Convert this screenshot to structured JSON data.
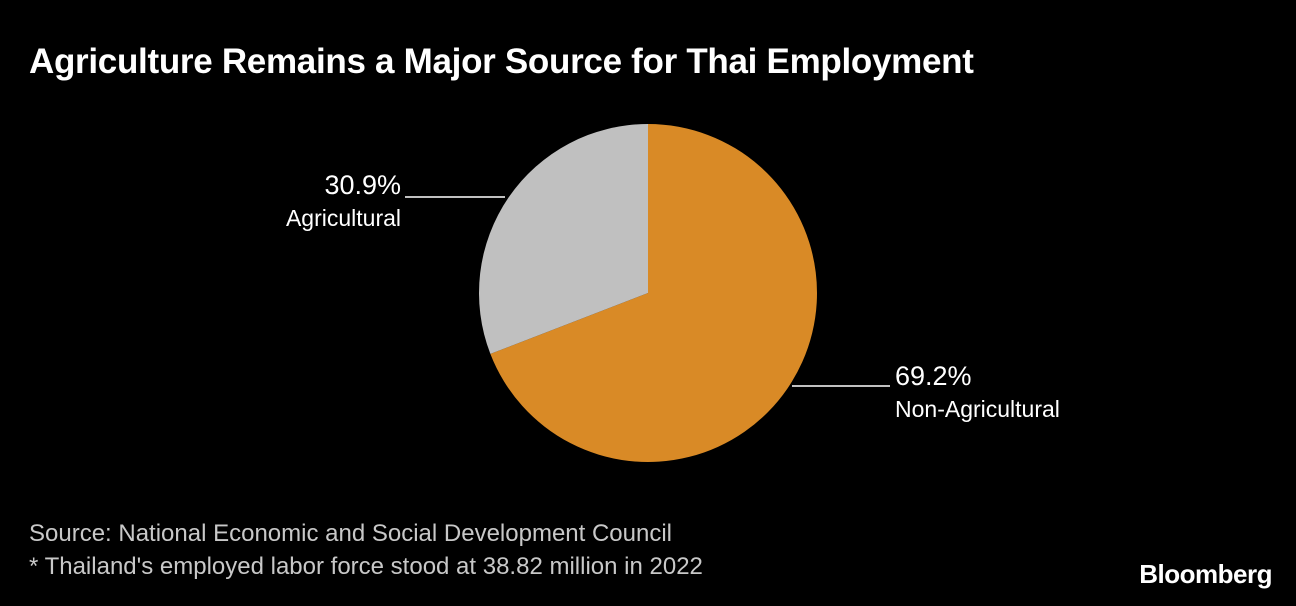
{
  "chart_data": {
    "type": "pie",
    "title": "Agriculture Remains a Major Source for Thai Employment",
    "slices": [
      {
        "label": "Agricultural",
        "value": 30.9,
        "value_label": "30.9%",
        "color": "#c0c0c0"
      },
      {
        "label": "Non-Agricultural",
        "value": 69.2,
        "value_label": "69.2%",
        "color": "#d98a26"
      }
    ],
    "source": "Source: National Economic and Social Development Council",
    "note": "* Thailand's employed labor force stood at 38.82 million in 2022"
  },
  "branding": {
    "logo_text": "Bloomberg"
  },
  "colors": {
    "background": "#000000",
    "text": "#ffffff",
    "footnote": "#c8c8c8"
  }
}
